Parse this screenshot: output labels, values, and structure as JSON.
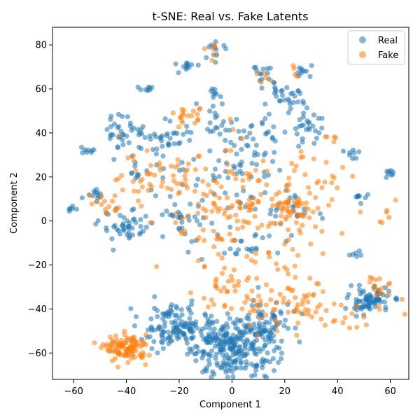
{
  "chart_data": {
    "type": "scatter",
    "title": "t-SNE: Real vs. Fake Latents",
    "xlabel": "Component 1",
    "ylabel": "Component 2",
    "xlim": [
      -68,
      67
    ],
    "ylim": [
      -72,
      88
    ],
    "xticks": [
      -60,
      -40,
      -20,
      0,
      20,
      40,
      60
    ],
    "yticks": [
      -60,
      -40,
      -20,
      0,
      20,
      40,
      60,
      80
    ],
    "xtick_labels": [
      "−60",
      "−40",
      "−20",
      "0",
      "20",
      "40",
      "60"
    ],
    "ytick_labels": [
      "−60",
      "−40",
      "−20",
      "0",
      "20",
      "40",
      "60",
      "80"
    ],
    "grid": false,
    "legend_position": "top-right",
    "series": [
      {
        "name": "Real",
        "color": "#1f77b4",
        "alpha": 0.55,
        "clusters": [
          {
            "cx": 0,
            "cy": -57,
            "sx": 8,
            "sy": 7,
            "n": 260
          },
          {
            "cx": -22,
            "cy": -48,
            "sx": 6,
            "sy": 5,
            "n": 120
          },
          {
            "cx": 12,
            "cy": -48,
            "sx": 5,
            "sy": 6,
            "n": 70
          },
          {
            "cx": 52,
            "cy": -36,
            "sx": 4,
            "sy": 3,
            "n": 80
          },
          {
            "cx": -40,
            "cy": 40,
            "sx": 4,
            "sy": 4,
            "n": 40
          },
          {
            "cx": -40,
            "cy": -3,
            "sx": 5,
            "sy": 4,
            "n": 45
          },
          {
            "cx": -20,
            "cy": 0,
            "sx": 6,
            "sy": 4,
            "n": 30
          },
          {
            "cx": 20,
            "cy": 55,
            "sx": 4,
            "sy": 3,
            "n": 30
          },
          {
            "cx": 28,
            "cy": 43,
            "sx": 3,
            "sy": 3,
            "n": 25
          },
          {
            "cx": -24,
            "cy": 37,
            "sx": 5,
            "sy": 4,
            "n": 30
          },
          {
            "cx": -17,
            "cy": 71,
            "sx": 2,
            "sy": 1.5,
            "n": 12
          },
          {
            "cx": -6,
            "cy": 77,
            "sx": 2,
            "sy": 2,
            "n": 12
          },
          {
            "cx": 12,
            "cy": 67,
            "sx": 2,
            "sy": 2,
            "n": 14
          },
          {
            "cx": 27,
            "cy": 68,
            "sx": 2,
            "sy": 1.5,
            "n": 10
          },
          {
            "cx": -32,
            "cy": 60,
            "sx": 1.5,
            "sy": 1,
            "n": 8
          },
          {
            "cx": -6,
            "cy": 58,
            "sx": 1.5,
            "sy": 1,
            "n": 8
          },
          {
            "cx": -61,
            "cy": 5,
            "sx": 1,
            "sy": 1,
            "n": 6
          },
          {
            "cx": -55,
            "cy": 32,
            "sx": 2,
            "sy": 1,
            "n": 8
          },
          {
            "cx": -52,
            "cy": 14,
            "sx": 2,
            "sy": 2,
            "n": 12
          },
          {
            "cx": 60,
            "cy": 21,
            "sx": 1.5,
            "sy": 1.5,
            "n": 8
          },
          {
            "cx": 49,
            "cy": 10,
            "sx": 2,
            "sy": 2,
            "n": 8
          },
          {
            "cx": 46,
            "cy": 30,
            "sx": 2,
            "sy": 2,
            "n": 8
          },
          {
            "cx": 48,
            "cy": -15,
            "sx": 2,
            "sy": 1,
            "n": 6
          },
          {
            "cx": 10,
            "cy": 40,
            "sx": 6,
            "sy": 5,
            "n": 25
          },
          {
            "cx": 0,
            "cy": 25,
            "sx": 12,
            "sy": 10,
            "n": 70
          },
          {
            "cx": 5,
            "cy": -10,
            "sx": 10,
            "sy": 5,
            "n": 25
          },
          {
            "cx": -5,
            "cy": 45,
            "sx": 4,
            "sy": 3,
            "n": 15
          },
          {
            "cx": -36,
            "cy": 22,
            "sx": 3,
            "sy": 2,
            "n": 10
          },
          {
            "cx": 25,
            "cy": 5,
            "sx": 6,
            "sy": 5,
            "n": 20
          }
        ]
      },
      {
        "name": "Fake",
        "color": "#ff7f0e",
        "alpha": 0.55,
        "clusters": [
          {
            "cx": -40,
            "cy": -58,
            "sx": 4,
            "sy": 3,
            "n": 110
          },
          {
            "cx": 5,
            "cy": 5,
            "sx": 16,
            "sy": 13,
            "n": 160
          },
          {
            "cx": 20,
            "cy": -38,
            "sx": 12,
            "sy": 7,
            "n": 75
          },
          {
            "cx": 22,
            "cy": 5,
            "sx": 5,
            "sy": 4,
            "n": 40
          },
          {
            "cx": -15,
            "cy": 46,
            "sx": 4,
            "sy": 3,
            "n": 20
          },
          {
            "cx": -38,
            "cy": 20,
            "sx": 6,
            "sy": 8,
            "n": 30
          },
          {
            "cx": 56,
            "cy": -32,
            "sx": 4,
            "sy": 5,
            "n": 18
          },
          {
            "cx": -7,
            "cy": 76,
            "sx": 1.5,
            "sy": 1.5,
            "n": 6
          },
          {
            "cx": 12,
            "cy": 66,
            "sx": 1.5,
            "sy": 1.5,
            "n": 5
          },
          {
            "cx": 25,
            "cy": 68,
            "sx": 1.5,
            "sy": 1.5,
            "n": 4
          },
          {
            "cx": 37,
            "cy": 38,
            "sx": 1.5,
            "sy": 1.5,
            "n": 5
          },
          {
            "cx": 0,
            "cy": -30,
            "sx": 8,
            "sy": 6,
            "n": 25
          },
          {
            "cx": 40,
            "cy": -45,
            "sx": 5,
            "sy": 4,
            "n": 15
          },
          {
            "cx": -48,
            "cy": 10,
            "sx": 3,
            "sy": 3,
            "n": 10
          },
          {
            "cx": 58,
            "cy": 3,
            "sx": 2,
            "sy": 2,
            "n": 5
          },
          {
            "cx": -20,
            "cy": 20,
            "sx": 6,
            "sy": 5,
            "n": 25
          },
          {
            "cx": 40,
            "cy": 20,
            "sx": 4,
            "sy": 4,
            "n": 10
          }
        ]
      }
    ]
  }
}
